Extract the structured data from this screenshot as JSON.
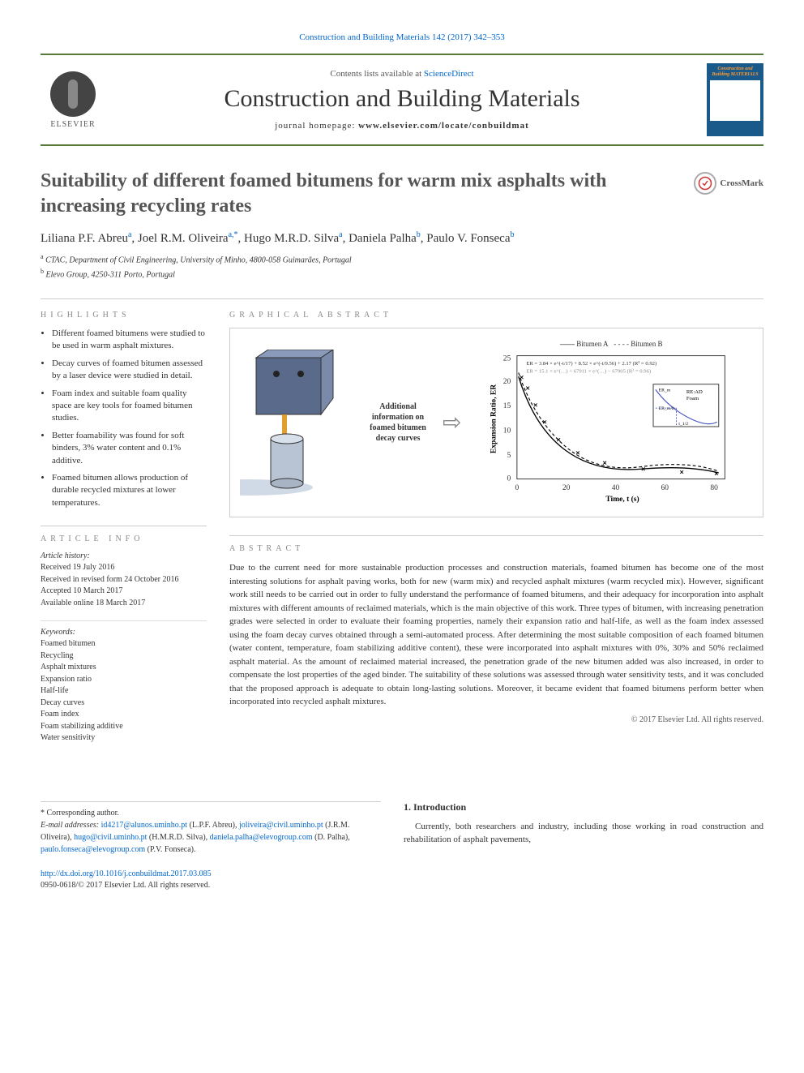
{
  "citation": "Construction and Building Materials 142 (2017) 342–353",
  "masthead": {
    "publisher": "ELSEVIER",
    "contents_line_prefix": "Contents lists available at ",
    "contents_line_link": "ScienceDirect",
    "journal": "Construction and Building Materials",
    "homepage_label": "journal homepage: ",
    "homepage_url": "www.elsevier.com/locate/conbuildmat",
    "cover_title": "Construction and Building MATERIALS"
  },
  "article": {
    "title": "Suitability of different foamed bitumens for warm mix asphalts with increasing recycling rates",
    "crossmark_label": "CrossMark"
  },
  "authors": [
    {
      "name": "Liliana P.F. Abreu",
      "aff": "a"
    },
    {
      "name": "Joel R.M. Oliveira",
      "aff": "a,*"
    },
    {
      "name": "Hugo M.R.D. Silva",
      "aff": "a"
    },
    {
      "name": "Daniela Palha",
      "aff": "b"
    },
    {
      "name": "Paulo V. Fonseca",
      "aff": "b"
    }
  ],
  "affiliations": [
    {
      "key": "a",
      "text": "CTAC, Department of Civil Engineering, University of Minho, 4800-058 Guimarães, Portugal"
    },
    {
      "key": "b",
      "text": "Elevo Group, 4250-311 Porto, Portugal"
    }
  ],
  "highlights": {
    "title": "HIGHLIGHTS",
    "items": [
      "Different foamed bitumens were studied to be used in warm asphalt mixtures.",
      "Decay curves of foamed bitumen assessed by a laser device were studied in detail.",
      "Foam index and suitable foam quality space are key tools for foamed bitumen studies.",
      "Better foamability was found for soft binders, 3% water content and 0.1% additive.",
      "Foamed bitumen allows production of durable recycled mixtures at lower temperatures."
    ]
  },
  "graphical_abstract": {
    "title": "GRAPHICAL ABSTRACT",
    "caption": "Additional information on foamed bitumen decay curves",
    "chart": {
      "type": "line",
      "series": [
        {
          "name": "Bitumen A",
          "style": "solid",
          "color": "#000000"
        },
        {
          "name": "Bitumen B",
          "style": "dashed",
          "color": "#000000"
        }
      ],
      "equations": [
        "ER = 3.84 × e^(-t/17) + 8.52 × e^(-t/9.56) + 2.17  (R² = 0.92)",
        "ER = 15.1 × e^(0) + 67911 × e^(0.0001) − 67905  (R² = 0.96)"
      ],
      "xlabel": "Time, t (s)",
      "ylabel": "Expansion Ratio, ER",
      "xlim": [
        0,
        85
      ],
      "xtick_step": 20,
      "ylim": [
        0,
        27
      ],
      "ytick_step": 5,
      "annotations": [
        "ER_m",
        "RE:AD Foam",
        "ER_m/2",
        "t_1/2"
      ],
      "inset_curve_color": "#4a58c4",
      "marker": "x",
      "device_colors": {
        "body": "#5a6a8a",
        "cylinder": "#b8c4d4",
        "rod": "#e0a030"
      }
    }
  },
  "info": {
    "title": "ARTICLE INFO",
    "history_head": "Article history:",
    "history": [
      "Received 19 July 2016",
      "Received in revised form 24 October 2016",
      "Accepted 10 March 2017",
      "Available online 18 March 2017"
    ],
    "keywords_head": "Keywords:",
    "keywords": [
      "Foamed bitumen",
      "Recycling",
      "Asphalt mixtures",
      "Expansion ratio",
      "Half-life",
      "Decay curves",
      "Foam index",
      "Foam stabilizing additive",
      "Water sensitivity"
    ]
  },
  "abstract": {
    "title": "ABSTRACT",
    "text": "Due to the current need for more sustainable production processes and construction materials, foamed bitumen has become one of the most interesting solutions for asphalt paving works, both for new (warm mix) and recycled asphalt mixtures (warm recycled mix). However, significant work still needs to be carried out in order to fully understand the performance of foamed bitumens, and their adequacy for incorporation into asphalt mixtures with different amounts of reclaimed materials, which is the main objective of this work. Three types of bitumen, with increasing penetration grades were selected in order to evaluate their foaming properties, namely their expansion ratio and half-life, as well as the foam index assessed using the foam decay curves obtained through a semi-automated process. After determining the most suitable composition of each foamed bitumen (water content, temperature, foam stabilizing additive content), these were incorporated into asphalt mixtures with 0%, 30% and 50% reclaimed asphalt material. As the amount of reclaimed material increased, the penetration grade of the new bitumen added was also increased, in order to compensate the lost properties of the aged binder. The suitability of these solutions was assessed through water sensitivity tests, and it was concluded that the proposed approach is adequate to obtain long-lasting solutions. Moreover, it became evident that foamed bitumens perform better when incorporated into recycled asphalt mixtures.",
    "copyright": "© 2017 Elsevier Ltd. All rights reserved."
  },
  "introduction": {
    "heading": "1. Introduction",
    "text": "Currently, both researchers and industry, including those working in road construction and rehabilitation of asphalt pavements,"
  },
  "footnotes": {
    "corr_symbol": "*",
    "corr_label": "Corresponding author.",
    "email_label": "E-mail addresses: ",
    "emails": [
      {
        "addr": "id4217@alunos.uminho.pt",
        "who": "(L.P.F. Abreu)"
      },
      {
        "addr": "joliveira@civil.uminho.pt",
        "who": "(J.R.M. Oliveira)"
      },
      {
        "addr": "hugo@civil.uminho.pt",
        "who": "(H.M.R.D. Silva)"
      },
      {
        "addr": "daniela.palha@elevogroup.com",
        "who": "(D. Palha)"
      },
      {
        "addr": "paulo.fonseca@elevogroup.com",
        "who": "(P.V. Fonseca)."
      }
    ]
  },
  "doi": {
    "url": "http://dx.doi.org/10.1016/j.conbuildmat.2017.03.085",
    "issn_line": "0950-0618/© 2017 Elsevier Ltd. All rights reserved."
  }
}
